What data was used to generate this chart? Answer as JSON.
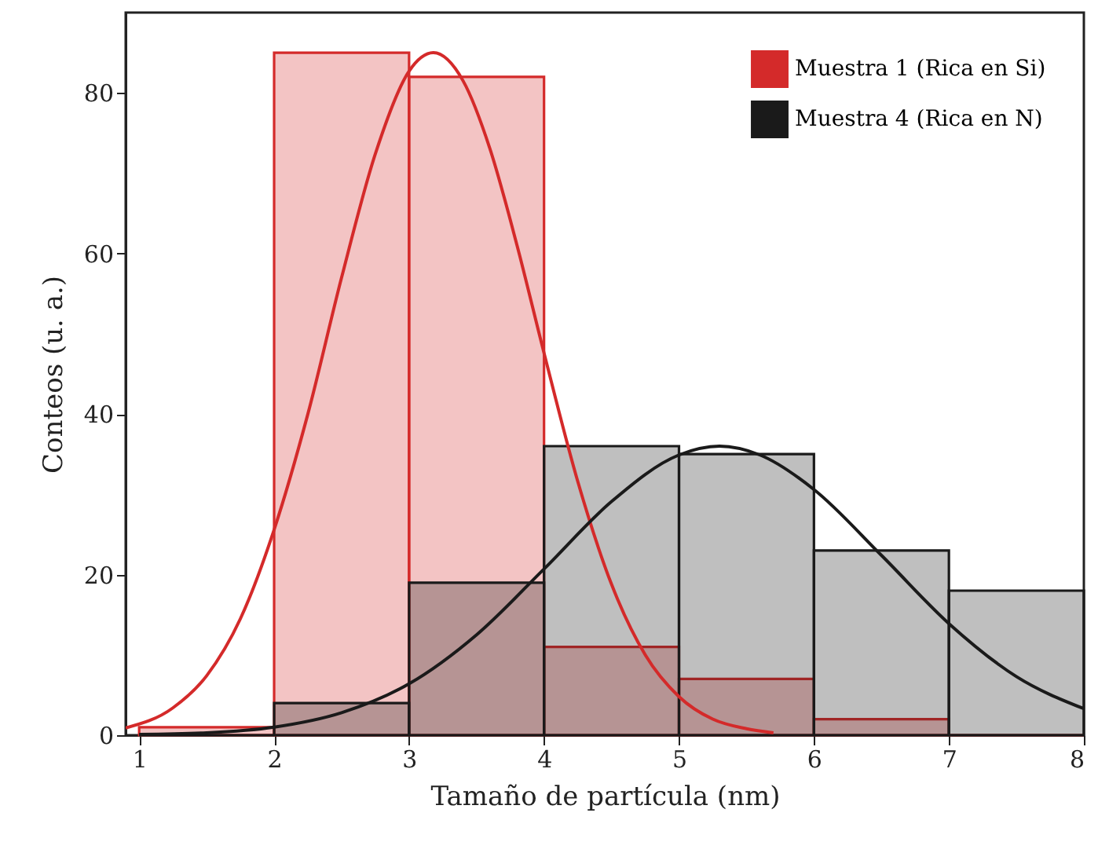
{
  "chart_data": {
    "type": "histogram",
    "xlabel": "Tamaño de partícula (nm)",
    "ylabel": "Conteos (u. a.)",
    "bins": [
      1,
      2,
      3,
      4,
      5,
      6,
      7,
      8
    ],
    "series": [
      {
        "name": "Muestra 1 (Rica en Si)",
        "color": "#d42a2a",
        "values": [
          1,
          85,
          82,
          11,
          7,
          2,
          0
        ]
      },
      {
        "name": "Muestra 4 (Rica en N)",
        "color": "#1a1a1a",
        "values": [
          0,
          4,
          19,
          36,
          35,
          23,
          18
        ]
      },
      {
        "type": "line",
        "color": "#d42a2a",
        "x": [
          0.9,
          1.25,
          1.5,
          1.75,
          2.0,
          2.25,
          2.5,
          2.75,
          3.0,
          3.18,
          3.4,
          3.6,
          3.8,
          4.0,
          4.25,
          4.5,
          4.75,
          5.0,
          5.25,
          5.5,
          5.7
        ],
        "values": [
          0.9,
          3.4,
          7.4,
          14.5,
          25.6,
          40,
          57,
          72.4,
          82.7,
          85,
          81.5,
          73,
          61,
          47.6,
          31.6,
          18.8,
          10,
          4.8,
          2,
          0.8,
          0.3
        ]
      },
      {
        "type": "line",
        "color": "#1a1a1a",
        "x": [
          1.0,
          1.5,
          2.0,
          2.5,
          3.0,
          3.5,
          4.0,
          4.5,
          5.0,
          5.3,
          5.6,
          6.0,
          6.5,
          7.0,
          7.5,
          8.0
        ],
        "values": [
          0.1,
          0.3,
          1.0,
          2.8,
          6.4,
          12.5,
          20.7,
          29.1,
          34.9,
          36,
          34.9,
          30.6,
          22.4,
          13.9,
          7.3,
          3.3
        ]
      }
    ],
    "xlim": [
      0.9,
      8
    ],
    "ylim": [
      0,
      90
    ],
    "xticks": [
      1,
      2,
      3,
      4,
      5,
      6,
      7,
      8
    ],
    "yticks": [
      0,
      20,
      40,
      60,
      80
    ],
    "grid": false,
    "legend": "top right"
  }
}
